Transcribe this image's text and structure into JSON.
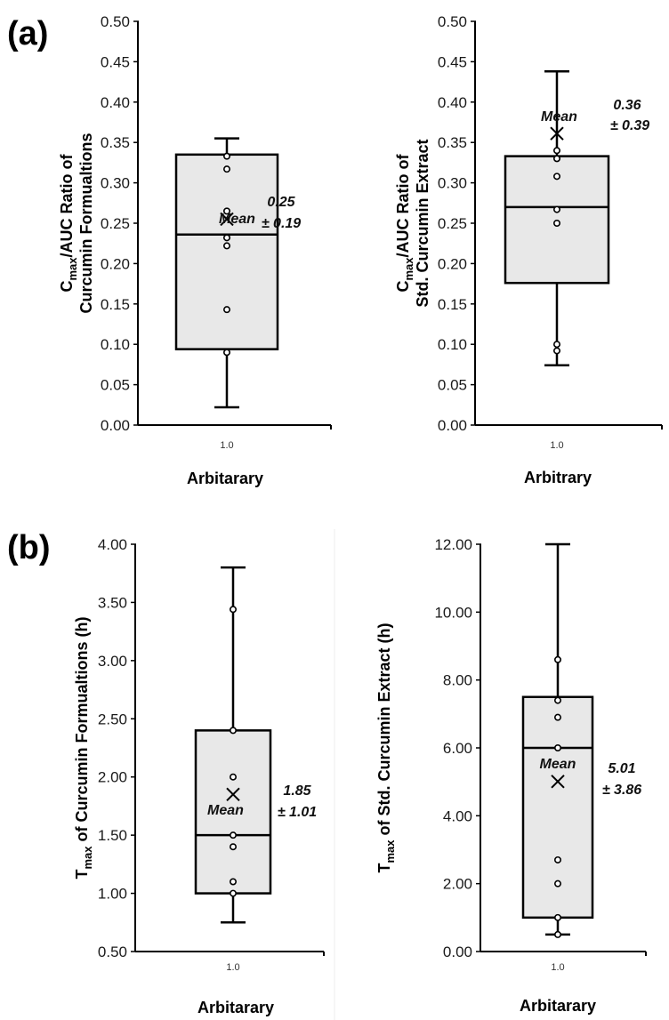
{
  "panels": {
    "a": "(a)",
    "b": "(b)"
  },
  "mean_word": "Mean",
  "colors": {
    "box_fill": "#e8e8e8",
    "stroke": "#000000",
    "point_fill": "#ffffff"
  },
  "chart_data": [
    {
      "type": "box",
      "panel": "a",
      "ylabel_main": "C",
      "ylabel_sub": "max",
      "ylabel_rest": "/AUC Ratio of",
      "ylabel_line2": "Curcumin Formualtions",
      "xlabel": "Arbitarary",
      "category": "1.0",
      "ylim": [
        0.0,
        0.5
      ],
      "yticks": [
        "0.00",
        "0.05",
        "0.10",
        "0.15",
        "0.20",
        "0.25",
        "0.30",
        "0.35",
        "0.40",
        "0.45",
        "0.50"
      ],
      "box": {
        "whisker_low": 0.022,
        "q1": 0.094,
        "median": 0.236,
        "q3": 0.335,
        "whisker_high": 0.355
      },
      "mean": 0.255,
      "points": [
        0.09,
        0.143,
        0.222,
        0.232,
        0.265,
        0.317,
        0.333
      ],
      "mean_label": "0.25",
      "sd_label": "± 0.19"
    },
    {
      "type": "box",
      "panel": "a",
      "ylabel_main": "C",
      "ylabel_sub": "max",
      "ylabel_rest": "/AUC Ratio of",
      "ylabel_line2": "Std. Curcumin Extract",
      "xlabel": "Arbitrary",
      "category": "1.0",
      "ylim": [
        0.0,
        0.5
      ],
      "yticks": [
        "0.00",
        "0.05",
        "0.10",
        "0.15",
        "0.20",
        "0.25",
        "0.30",
        "0.35",
        "0.40",
        "0.45",
        "0.50"
      ],
      "box": {
        "whisker_low": 0.074,
        "q1": 0.176,
        "median": 0.27,
        "q3": 0.333,
        "whisker_high": 0.438
      },
      "mean": 0.361,
      "points": [
        0.092,
        0.1,
        0.25,
        0.267,
        0.308,
        0.33,
        0.34
      ],
      "mean_label": "0.36",
      "sd_label": "± 0.39"
    },
    {
      "type": "box",
      "panel": "b",
      "ylabel_main": "T",
      "ylabel_sub": "max",
      "ylabel_rest": " of Curcumin Formualtions (h)",
      "ylabel_line2": "",
      "xlabel": "Arbitarary",
      "category": "1.0",
      "ylim": [
        0.5,
        4.0
      ],
      "yticks": [
        "0.50",
        "1.00",
        "1.50",
        "2.00",
        "2.50",
        "3.00",
        "3.50",
        "4.00"
      ],
      "box": {
        "whisker_low": 0.75,
        "q1": 1.0,
        "median": 1.5,
        "q3": 2.4,
        "whisker_high": 3.8
      },
      "mean": 1.85,
      "points": [
        1.0,
        1.1,
        1.4,
        1.5,
        2.0,
        2.4,
        3.44
      ],
      "mean_label": "1.85",
      "sd_label": "± 1.01"
    },
    {
      "type": "box",
      "panel": "b",
      "ylabel_main": "T",
      "ylabel_sub": "max",
      "ylabel_rest": " of Std. Curcumin Extract (h)",
      "ylabel_line2": "",
      "xlabel": "Arbitarary",
      "category": "1.0",
      "ylim": [
        0.0,
        12.0
      ],
      "yticks": [
        "0.00",
        "2.00",
        "4.00",
        "6.00",
        "8.00",
        "10.00",
        "12.00"
      ],
      "box": {
        "whisker_low": 0.5,
        "q1": 1.0,
        "median": 6.0,
        "q3": 7.5,
        "whisker_high": 12.0
      },
      "mean": 5.01,
      "points": [
        0.5,
        1.0,
        2.0,
        2.7,
        6.0,
        6.9,
        7.4,
        8.6
      ],
      "mean_label": "5.01",
      "sd_label": "± 3.86"
    }
  ]
}
